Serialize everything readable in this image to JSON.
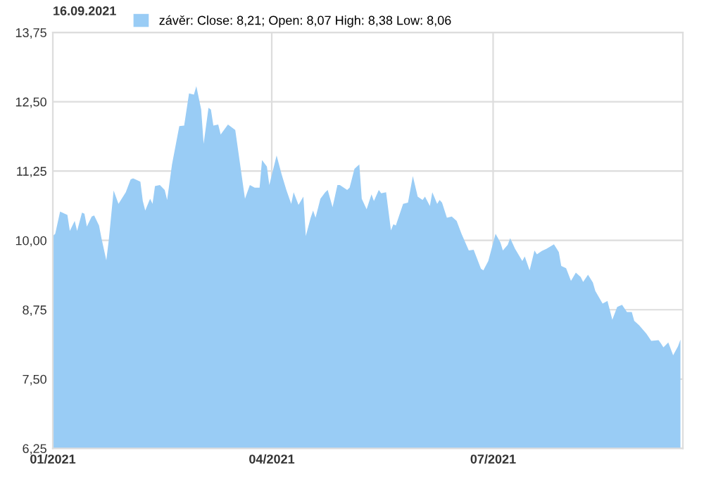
{
  "chart_data": {
    "type": "area",
    "legend_title": "16.09.2021",
    "legend": "top left",
    "grid": true,
    "xlim": [
      "2021-01-01",
      "2021-09-17"
    ],
    "xticks": [
      {
        "value": "2021-01-01",
        "label": "01/2021"
      },
      {
        "value": "2021-04-01",
        "label": "04/2021"
      },
      {
        "value": "2021-07-01",
        "label": "07/2021"
      }
    ],
    "ylim": [
      6.25,
      13.75
    ],
    "yticks": [
      {
        "value": 6.25,
        "label": "6,25"
      },
      {
        "value": 7.5,
        "label": "7,50"
      },
      {
        "value": 8.75,
        "label": "8,75"
      },
      {
        "value": 10.0,
        "label": "10,00"
      },
      {
        "value": 11.25,
        "label": "11,25"
      },
      {
        "value": 12.5,
        "label": "12,50"
      },
      {
        "value": 13.75,
        "label": "13,75"
      }
    ],
    "x": [
      "2021-01-01",
      "2021-01-02",
      "2021-01-04",
      "2021-01-07",
      "2021-01-08",
      "2021-01-10",
      "2021-01-11",
      "2021-01-13",
      "2021-01-14",
      "2021-01-15",
      "2021-01-17",
      "2021-01-18",
      "2021-01-20",
      "2021-01-21",
      "2021-01-23",
      "2021-01-24",
      "2021-01-26",
      "2021-01-28",
      "2021-01-31",
      "2021-02-02",
      "2021-02-03",
      "2021-02-06",
      "2021-02-07",
      "2021-02-08",
      "2021-02-10",
      "2021-02-11",
      "2021-02-12",
      "2021-02-14",
      "2021-02-16",
      "2021-02-17",
      "2021-02-19",
      "2021-02-22",
      "2021-02-24",
      "2021-02-26",
      "2021-02-28",
      "2021-03-01",
      "2021-03-03",
      "2021-03-04",
      "2021-03-06",
      "2021-03-07",
      "2021-03-08",
      "2021-03-10",
      "2021-03-11",
      "2021-03-14",
      "2021-03-17",
      "2021-03-21",
      "2021-03-23",
      "2021-03-25",
      "2021-03-27",
      "2021-03-28",
      "2021-03-30",
      "2021-03-31",
      "2021-04-03",
      "2021-04-05",
      "2021-04-07",
      "2021-04-09",
      "2021-04-10",
      "2021-04-12",
      "2021-04-14",
      "2021-04-15",
      "2021-04-17",
      "2021-04-18",
      "2021-04-19",
      "2021-04-21",
      "2021-04-23",
      "2021-04-24",
      "2021-04-26",
      "2021-04-28",
      "2021-04-29",
      "2021-05-02",
      "2021-05-03",
      "2021-05-05",
      "2021-05-07",
      "2021-05-08",
      "2021-05-10",
      "2021-05-12",
      "2021-05-13",
      "2021-05-15",
      "2021-05-16",
      "2021-05-18",
      "2021-05-20",
      "2021-05-21",
      "2021-05-22",
      "2021-05-25",
      "2021-05-27",
      "2021-05-29",
      "2021-05-31",
      "2021-06-02",
      "2021-06-03",
      "2021-06-05",
      "2021-06-06",
      "2021-06-08",
      "2021-06-09",
      "2021-06-10",
      "2021-06-12",
      "2021-06-14",
      "2021-06-16",
      "2021-06-18",
      "2021-06-21",
      "2021-06-23",
      "2021-06-26",
      "2021-06-27",
      "2021-06-29",
      "2021-06-30",
      "2021-07-02",
      "2021-07-04",
      "2021-07-05",
      "2021-07-07",
      "2021-07-08",
      "2021-07-10",
      "2021-07-13",
      "2021-07-14",
      "2021-07-16",
      "2021-07-18",
      "2021-07-19",
      "2021-07-21",
      "2021-07-23",
      "2021-07-26",
      "2021-07-28",
      "2021-07-29",
      "2021-07-31",
      "2021-08-02",
      "2021-08-04",
      "2021-08-06",
      "2021-08-07",
      "2021-08-09",
      "2021-08-11",
      "2021-08-12",
      "2021-08-15",
      "2021-08-17",
      "2021-08-19",
      "2021-08-21",
      "2021-08-23",
      "2021-08-25",
      "2021-08-27",
      "2021-08-28",
      "2021-08-30",
      "2021-09-02",
      "2021-09-04",
      "2021-09-07",
      "2021-09-08",
      "2021-09-09",
      "2021-09-11",
      "2021-09-13",
      "2021-09-15",
      "2021-09-16"
    ],
    "series": [
      {
        "name": "závěr: Close: 8,21; Open: 8,07 High: 8,38 Low: 8,06",
        "color": "#99ccf5",
        "values": [
          10.08,
          10.12,
          10.52,
          10.46,
          10.17,
          10.35,
          10.17,
          10.5,
          10.48,
          10.25,
          10.43,
          10.45,
          10.27,
          10.04,
          9.64,
          10.0,
          10.9,
          10.66,
          10.87,
          11.1,
          11.12,
          11.06,
          10.71,
          10.54,
          10.75,
          10.66,
          10.98,
          11.0,
          10.91,
          10.73,
          11.37,
          12.06,
          12.07,
          12.65,
          12.63,
          12.78,
          12.36,
          11.74,
          12.39,
          12.36,
          12.07,
          12.09,
          11.91,
          12.09,
          11.99,
          10.75,
          11.0,
          10.95,
          10.95,
          11.45,
          11.33,
          11.0,
          11.53,
          11.2,
          10.91,
          10.66,
          10.87,
          10.64,
          10.79,
          10.08,
          10.41,
          10.54,
          10.41,
          10.75,
          10.87,
          10.91,
          10.6,
          11.0,
          11.0,
          10.91,
          10.95,
          11.29,
          11.37,
          10.75,
          10.56,
          10.83,
          10.71,
          10.91,
          10.85,
          10.87,
          10.18,
          10.29,
          10.27,
          10.66,
          10.68,
          11.16,
          10.79,
          10.73,
          10.79,
          10.62,
          10.87,
          10.66,
          10.73,
          10.68,
          10.41,
          10.43,
          10.35,
          10.12,
          9.82,
          9.83,
          9.49,
          9.46,
          9.63,
          9.79,
          10.12,
          9.96,
          9.82,
          9.92,
          10.04,
          9.85,
          9.63,
          9.71,
          9.46,
          9.82,
          9.75,
          9.81,
          9.85,
          9.93,
          9.79,
          9.54,
          9.5,
          9.27,
          9.42,
          9.34,
          9.25,
          9.38,
          9.24,
          9.09,
          8.86,
          8.91,
          8.57,
          8.8,
          8.84,
          8.71,
          8.71,
          8.55,
          8.47,
          8.32,
          8.19,
          8.2,
          8.14,
          8.07,
          8.16,
          7.93,
          8.09,
          8.21
        ]
      }
    ]
  }
}
